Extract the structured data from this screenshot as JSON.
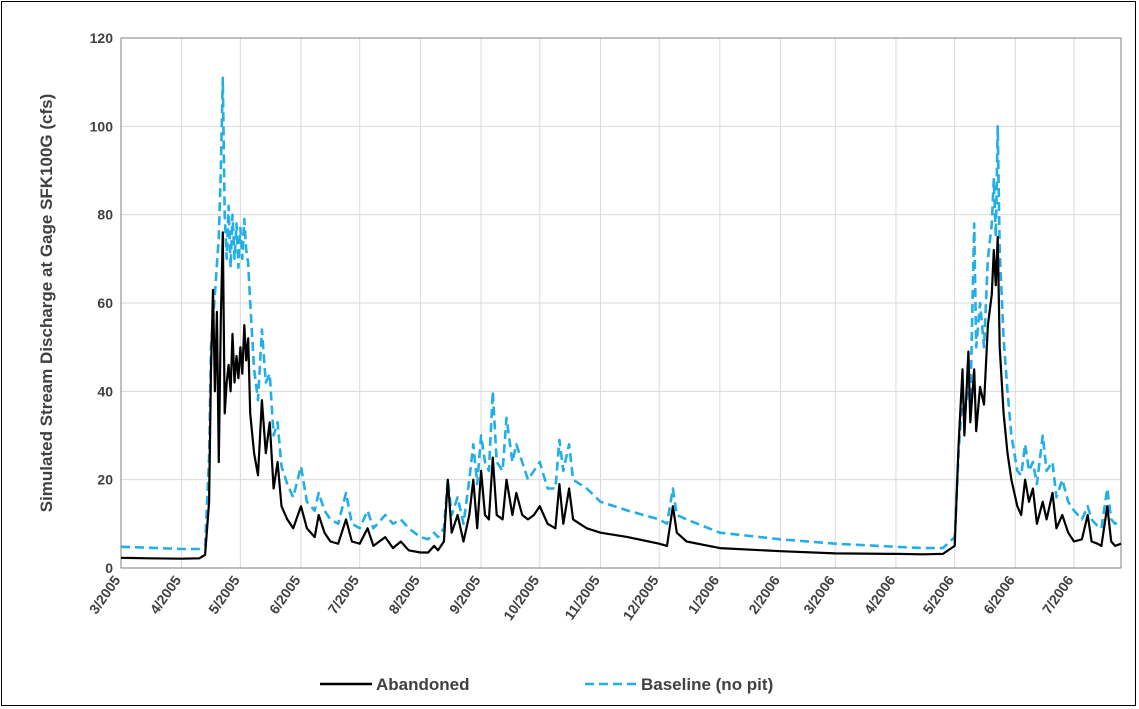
{
  "chart_data": {
    "type": "line",
    "title": "",
    "ylabel": "Simulated Stream Discharge at Gage SFK100G (cfs)",
    "xlabel": "",
    "ylim": [
      0,
      120
    ],
    "yticks": [
      0,
      20,
      40,
      60,
      80,
      100,
      120
    ],
    "xlim": [
      "2005-03-01",
      "2006-07-25"
    ],
    "xticks": [
      "3/2005",
      "4/2005",
      "5/2005",
      "6/2005",
      "7/2005",
      "8/2005",
      "9/2005",
      "10/2005",
      "11/2005",
      "12/2005",
      "1/2006",
      "2/2006",
      "3/2006",
      "4/2006",
      "5/2006",
      "6/2006",
      "7/2006"
    ],
    "grid": true,
    "legend_position": "bottom",
    "series": [
      {
        "name": "Abandoned",
        "color": "#000000",
        "style": "solid",
        "points": [
          [
            "2005-03-01",
            2.3
          ],
          [
            "2005-03-15",
            2.2
          ],
          [
            "2005-04-01",
            2.1
          ],
          [
            "2005-04-10",
            2.2
          ],
          [
            "2005-04-13",
            3
          ],
          [
            "2005-04-15",
            15
          ],
          [
            "2005-04-16",
            45
          ],
          [
            "2005-04-17",
            63
          ],
          [
            "2005-04-18",
            40
          ],
          [
            "2005-04-19",
            58
          ],
          [
            "2005-04-20",
            24
          ],
          [
            "2005-04-21",
            56
          ],
          [
            "2005-04-22",
            76
          ],
          [
            "2005-04-23",
            35
          ],
          [
            "2005-04-24",
            42
          ],
          [
            "2005-04-25",
            46
          ],
          [
            "2005-04-26",
            40
          ],
          [
            "2005-04-27",
            53
          ],
          [
            "2005-04-28",
            42
          ],
          [
            "2005-04-29",
            48
          ],
          [
            "2005-04-30",
            43
          ],
          [
            "2005-05-01",
            50
          ],
          [
            "2005-05-02",
            44
          ],
          [
            "2005-05-03",
            55
          ],
          [
            "2005-05-04",
            47
          ],
          [
            "2005-05-05",
            52
          ],
          [
            "2005-05-06",
            35
          ],
          [
            "2005-05-08",
            26
          ],
          [
            "2005-05-10",
            21
          ],
          [
            "2005-05-12",
            38
          ],
          [
            "2005-05-14",
            26
          ],
          [
            "2005-05-16",
            33
          ],
          [
            "2005-05-18",
            18
          ],
          [
            "2005-05-20",
            24
          ],
          [
            "2005-05-22",
            14
          ],
          [
            "2005-05-25",
            11
          ],
          [
            "2005-05-28",
            9
          ],
          [
            "2005-06-01",
            14
          ],
          [
            "2005-06-04",
            9
          ],
          [
            "2005-06-08",
            7
          ],
          [
            "2005-06-10",
            12
          ],
          [
            "2005-06-13",
            8
          ],
          [
            "2005-06-16",
            6
          ],
          [
            "2005-06-20",
            5.5
          ],
          [
            "2005-06-24",
            11
          ],
          [
            "2005-06-27",
            6
          ],
          [
            "2005-07-01",
            5.5
          ],
          [
            "2005-07-05",
            9
          ],
          [
            "2005-07-08",
            5
          ],
          [
            "2005-07-14",
            7
          ],
          [
            "2005-07-18",
            4.5
          ],
          [
            "2005-07-22",
            6
          ],
          [
            "2005-07-26",
            4
          ],
          [
            "2005-08-01",
            3.5
          ],
          [
            "2005-08-05",
            3.5
          ],
          [
            "2005-08-08",
            5
          ],
          [
            "2005-08-10",
            4
          ],
          [
            "2005-08-13",
            6
          ],
          [
            "2005-08-15",
            20
          ],
          [
            "2005-08-17",
            8
          ],
          [
            "2005-08-20",
            12
          ],
          [
            "2005-08-23",
            6
          ],
          [
            "2005-08-26",
            12
          ],
          [
            "2005-08-28",
            20
          ],
          [
            "2005-08-30",
            9
          ],
          [
            "2005-09-01",
            22
          ],
          [
            "2005-09-03",
            12
          ],
          [
            "2005-09-05",
            11
          ],
          [
            "2005-09-07",
            25
          ],
          [
            "2005-09-09",
            12
          ],
          [
            "2005-09-12",
            11
          ],
          [
            "2005-09-14",
            20
          ],
          [
            "2005-09-17",
            12
          ],
          [
            "2005-09-19",
            17
          ],
          [
            "2005-09-22",
            12
          ],
          [
            "2005-09-25",
            11
          ],
          [
            "2005-09-28",
            12
          ],
          [
            "2005-10-01",
            14
          ],
          [
            "2005-10-05",
            10
          ],
          [
            "2005-10-09",
            9
          ],
          [
            "2005-10-11",
            19
          ],
          [
            "2005-10-13",
            10
          ],
          [
            "2005-10-16",
            18
          ],
          [
            "2005-10-18",
            11
          ],
          [
            "2005-10-25",
            9
          ],
          [
            "2005-11-01",
            8
          ],
          [
            "2005-11-15",
            7
          ],
          [
            "2005-12-01",
            5.5
          ],
          [
            "2005-12-05",
            5
          ],
          [
            "2005-12-08",
            14
          ],
          [
            "2005-12-10",
            8
          ],
          [
            "2005-12-15",
            6
          ],
          [
            "2006-01-01",
            4.5
          ],
          [
            "2006-02-01",
            3.8
          ],
          [
            "2006-03-01",
            3.3
          ],
          [
            "2006-04-01",
            3.2
          ],
          [
            "2006-04-15",
            3.1
          ],
          [
            "2006-04-25",
            3.2
          ],
          [
            "2006-05-01",
            5
          ],
          [
            "2006-05-03",
            28
          ],
          [
            "2006-05-05",
            45
          ],
          [
            "2006-05-06",
            30
          ],
          [
            "2006-05-08",
            49
          ],
          [
            "2006-05-09",
            33
          ],
          [
            "2006-05-11",
            45
          ],
          [
            "2006-05-12",
            31
          ],
          [
            "2006-05-14",
            41
          ],
          [
            "2006-05-16",
            37
          ],
          [
            "2006-05-18",
            55
          ],
          [
            "2006-05-20",
            62
          ],
          [
            "2006-05-21",
            72
          ],
          [
            "2006-05-22",
            64
          ],
          [
            "2006-05-23",
            75
          ],
          [
            "2006-05-24",
            50
          ],
          [
            "2006-05-26",
            35
          ],
          [
            "2006-05-28",
            26
          ],
          [
            "2006-05-30",
            20
          ],
          [
            "2006-06-02",
            14
          ],
          [
            "2006-06-04",
            12
          ],
          [
            "2006-06-06",
            20
          ],
          [
            "2006-06-08",
            15
          ],
          [
            "2006-06-10",
            18
          ],
          [
            "2006-06-12",
            10
          ],
          [
            "2006-06-15",
            15
          ],
          [
            "2006-06-17",
            11
          ],
          [
            "2006-06-20",
            17
          ],
          [
            "2006-06-22",
            9
          ],
          [
            "2006-06-25",
            12
          ],
          [
            "2006-06-28",
            8
          ],
          [
            "2006-07-01",
            6
          ],
          [
            "2006-07-05",
            6.5
          ],
          [
            "2006-07-08",
            12
          ],
          [
            "2006-07-10",
            6
          ],
          [
            "2006-07-13",
            5.5
          ],
          [
            "2006-07-15",
            5
          ],
          [
            "2006-07-18",
            14
          ],
          [
            "2006-07-20",
            6
          ],
          [
            "2006-07-22",
            5
          ],
          [
            "2006-07-25",
            5.5
          ]
        ]
      },
      {
        "name": "Baseline (no pit)",
        "color": "#22aee6",
        "style": "dashed",
        "points": [
          [
            "2005-03-01",
            4.8
          ],
          [
            "2005-03-15",
            4.6
          ],
          [
            "2005-04-01",
            4.3
          ],
          [
            "2005-04-10",
            4.3
          ],
          [
            "2005-04-13",
            5
          ],
          [
            "2005-04-15",
            25
          ],
          [
            "2005-04-16",
            50
          ],
          [
            "2005-04-18",
            62
          ],
          [
            "2005-04-20",
            75
          ],
          [
            "2005-04-21",
            90
          ],
          [
            "2005-04-22",
            111
          ],
          [
            "2005-04-23",
            80
          ],
          [
            "2005-04-24",
            70
          ],
          [
            "2005-04-25",
            82
          ],
          [
            "2005-04-26",
            68
          ],
          [
            "2005-04-27",
            80
          ],
          [
            "2005-04-28",
            70
          ],
          [
            "2005-04-29",
            78
          ],
          [
            "2005-04-30",
            68
          ],
          [
            "2005-05-01",
            77
          ],
          [
            "2005-05-02",
            70
          ],
          [
            "2005-05-03",
            79
          ],
          [
            "2005-05-04",
            72
          ],
          [
            "2005-05-05",
            69
          ],
          [
            "2005-05-06",
            60
          ],
          [
            "2005-05-08",
            45
          ],
          [
            "2005-05-10",
            38
          ],
          [
            "2005-05-12",
            54
          ],
          [
            "2005-05-14",
            42
          ],
          [
            "2005-05-16",
            44
          ],
          [
            "2005-05-18",
            30
          ],
          [
            "2005-05-20",
            33
          ],
          [
            "2005-05-22",
            23
          ],
          [
            "2005-05-25",
            19
          ],
          [
            "2005-05-28",
            16
          ],
          [
            "2005-06-01",
            23
          ],
          [
            "2005-06-04",
            15
          ],
          [
            "2005-06-08",
            13
          ],
          [
            "2005-06-10",
            17
          ],
          [
            "2005-06-13",
            13
          ],
          [
            "2005-06-16",
            11
          ],
          [
            "2005-06-20",
            10
          ],
          [
            "2005-06-24",
            17
          ],
          [
            "2005-06-27",
            10
          ],
          [
            "2005-07-01",
            9
          ],
          [
            "2005-07-05",
            13
          ],
          [
            "2005-07-08",
            9
          ],
          [
            "2005-07-14",
            12
          ],
          [
            "2005-07-18",
            10
          ],
          [
            "2005-07-22",
            11
          ],
          [
            "2005-07-26",
            9
          ],
          [
            "2005-08-01",
            7
          ],
          [
            "2005-08-05",
            6.5
          ],
          [
            "2005-08-08",
            8
          ],
          [
            "2005-08-10",
            7
          ],
          [
            "2005-08-13",
            9
          ],
          [
            "2005-08-15",
            20
          ],
          [
            "2005-08-17",
            12
          ],
          [
            "2005-08-20",
            16
          ],
          [
            "2005-08-23",
            10
          ],
          [
            "2005-08-26",
            20
          ],
          [
            "2005-08-28",
            28
          ],
          [
            "2005-08-30",
            19
          ],
          [
            "2005-09-01",
            30
          ],
          [
            "2005-09-03",
            24
          ],
          [
            "2005-09-05",
            22
          ],
          [
            "2005-09-07",
            40
          ],
          [
            "2005-09-09",
            24
          ],
          [
            "2005-09-12",
            22
          ],
          [
            "2005-09-14",
            34
          ],
          [
            "2005-09-17",
            24
          ],
          [
            "2005-09-19",
            28
          ],
          [
            "2005-09-22",
            24
          ],
          [
            "2005-09-25",
            20
          ],
          [
            "2005-09-28",
            22
          ],
          [
            "2005-10-01",
            24
          ],
          [
            "2005-10-05",
            18
          ],
          [
            "2005-10-09",
            18
          ],
          [
            "2005-10-11",
            29
          ],
          [
            "2005-10-13",
            22
          ],
          [
            "2005-10-16",
            28
          ],
          [
            "2005-10-18",
            20
          ],
          [
            "2005-10-25",
            18
          ],
          [
            "2005-11-01",
            15
          ],
          [
            "2005-11-15",
            13
          ],
          [
            "2005-12-01",
            11
          ],
          [
            "2005-12-05",
            10
          ],
          [
            "2005-12-08",
            18
          ],
          [
            "2005-12-10",
            12
          ],
          [
            "2005-12-15",
            11
          ],
          [
            "2006-01-01",
            8
          ],
          [
            "2006-02-01",
            6.5
          ],
          [
            "2006-03-01",
            5.5
          ],
          [
            "2006-04-01",
            4.8
          ],
          [
            "2006-04-15",
            4.5
          ],
          [
            "2006-04-25",
            4.5
          ],
          [
            "2006-05-01",
            7
          ],
          [
            "2006-05-03",
            26
          ],
          [
            "2006-05-05",
            40
          ],
          [
            "2006-05-06",
            34
          ],
          [
            "2006-05-08",
            42
          ],
          [
            "2006-05-09",
            36
          ],
          [
            "2006-05-11",
            78
          ],
          [
            "2006-05-12",
            50
          ],
          [
            "2006-05-14",
            60
          ],
          [
            "2006-05-16",
            50
          ],
          [
            "2006-05-18",
            70
          ],
          [
            "2006-05-20",
            78
          ],
          [
            "2006-05-21",
            88
          ],
          [
            "2006-05-22",
            75
          ],
          [
            "2006-05-23",
            100
          ],
          [
            "2006-05-24",
            72
          ],
          [
            "2006-05-26",
            52
          ],
          [
            "2006-05-28",
            40
          ],
          [
            "2006-05-30",
            30
          ],
          [
            "2006-06-02",
            22
          ],
          [
            "2006-06-04",
            21
          ],
          [
            "2006-06-06",
            28
          ],
          [
            "2006-06-08",
            22
          ],
          [
            "2006-06-10",
            24
          ],
          [
            "2006-06-12",
            19
          ],
          [
            "2006-06-15",
            30
          ],
          [
            "2006-06-17",
            22
          ],
          [
            "2006-06-20",
            24
          ],
          [
            "2006-06-22",
            16
          ],
          [
            "2006-06-25",
            20
          ],
          [
            "2006-06-28",
            15
          ],
          [
            "2006-07-01",
            13
          ],
          [
            "2006-07-05",
            11
          ],
          [
            "2006-07-08",
            14
          ],
          [
            "2006-07-10",
            11
          ],
          [
            "2006-07-13",
            9.5
          ],
          [
            "2006-07-15",
            9
          ],
          [
            "2006-07-18",
            18
          ],
          [
            "2006-07-20",
            11
          ],
          [
            "2006-07-22",
            10
          ],
          [
            "2006-07-25",
            11
          ]
        ]
      }
    ]
  }
}
